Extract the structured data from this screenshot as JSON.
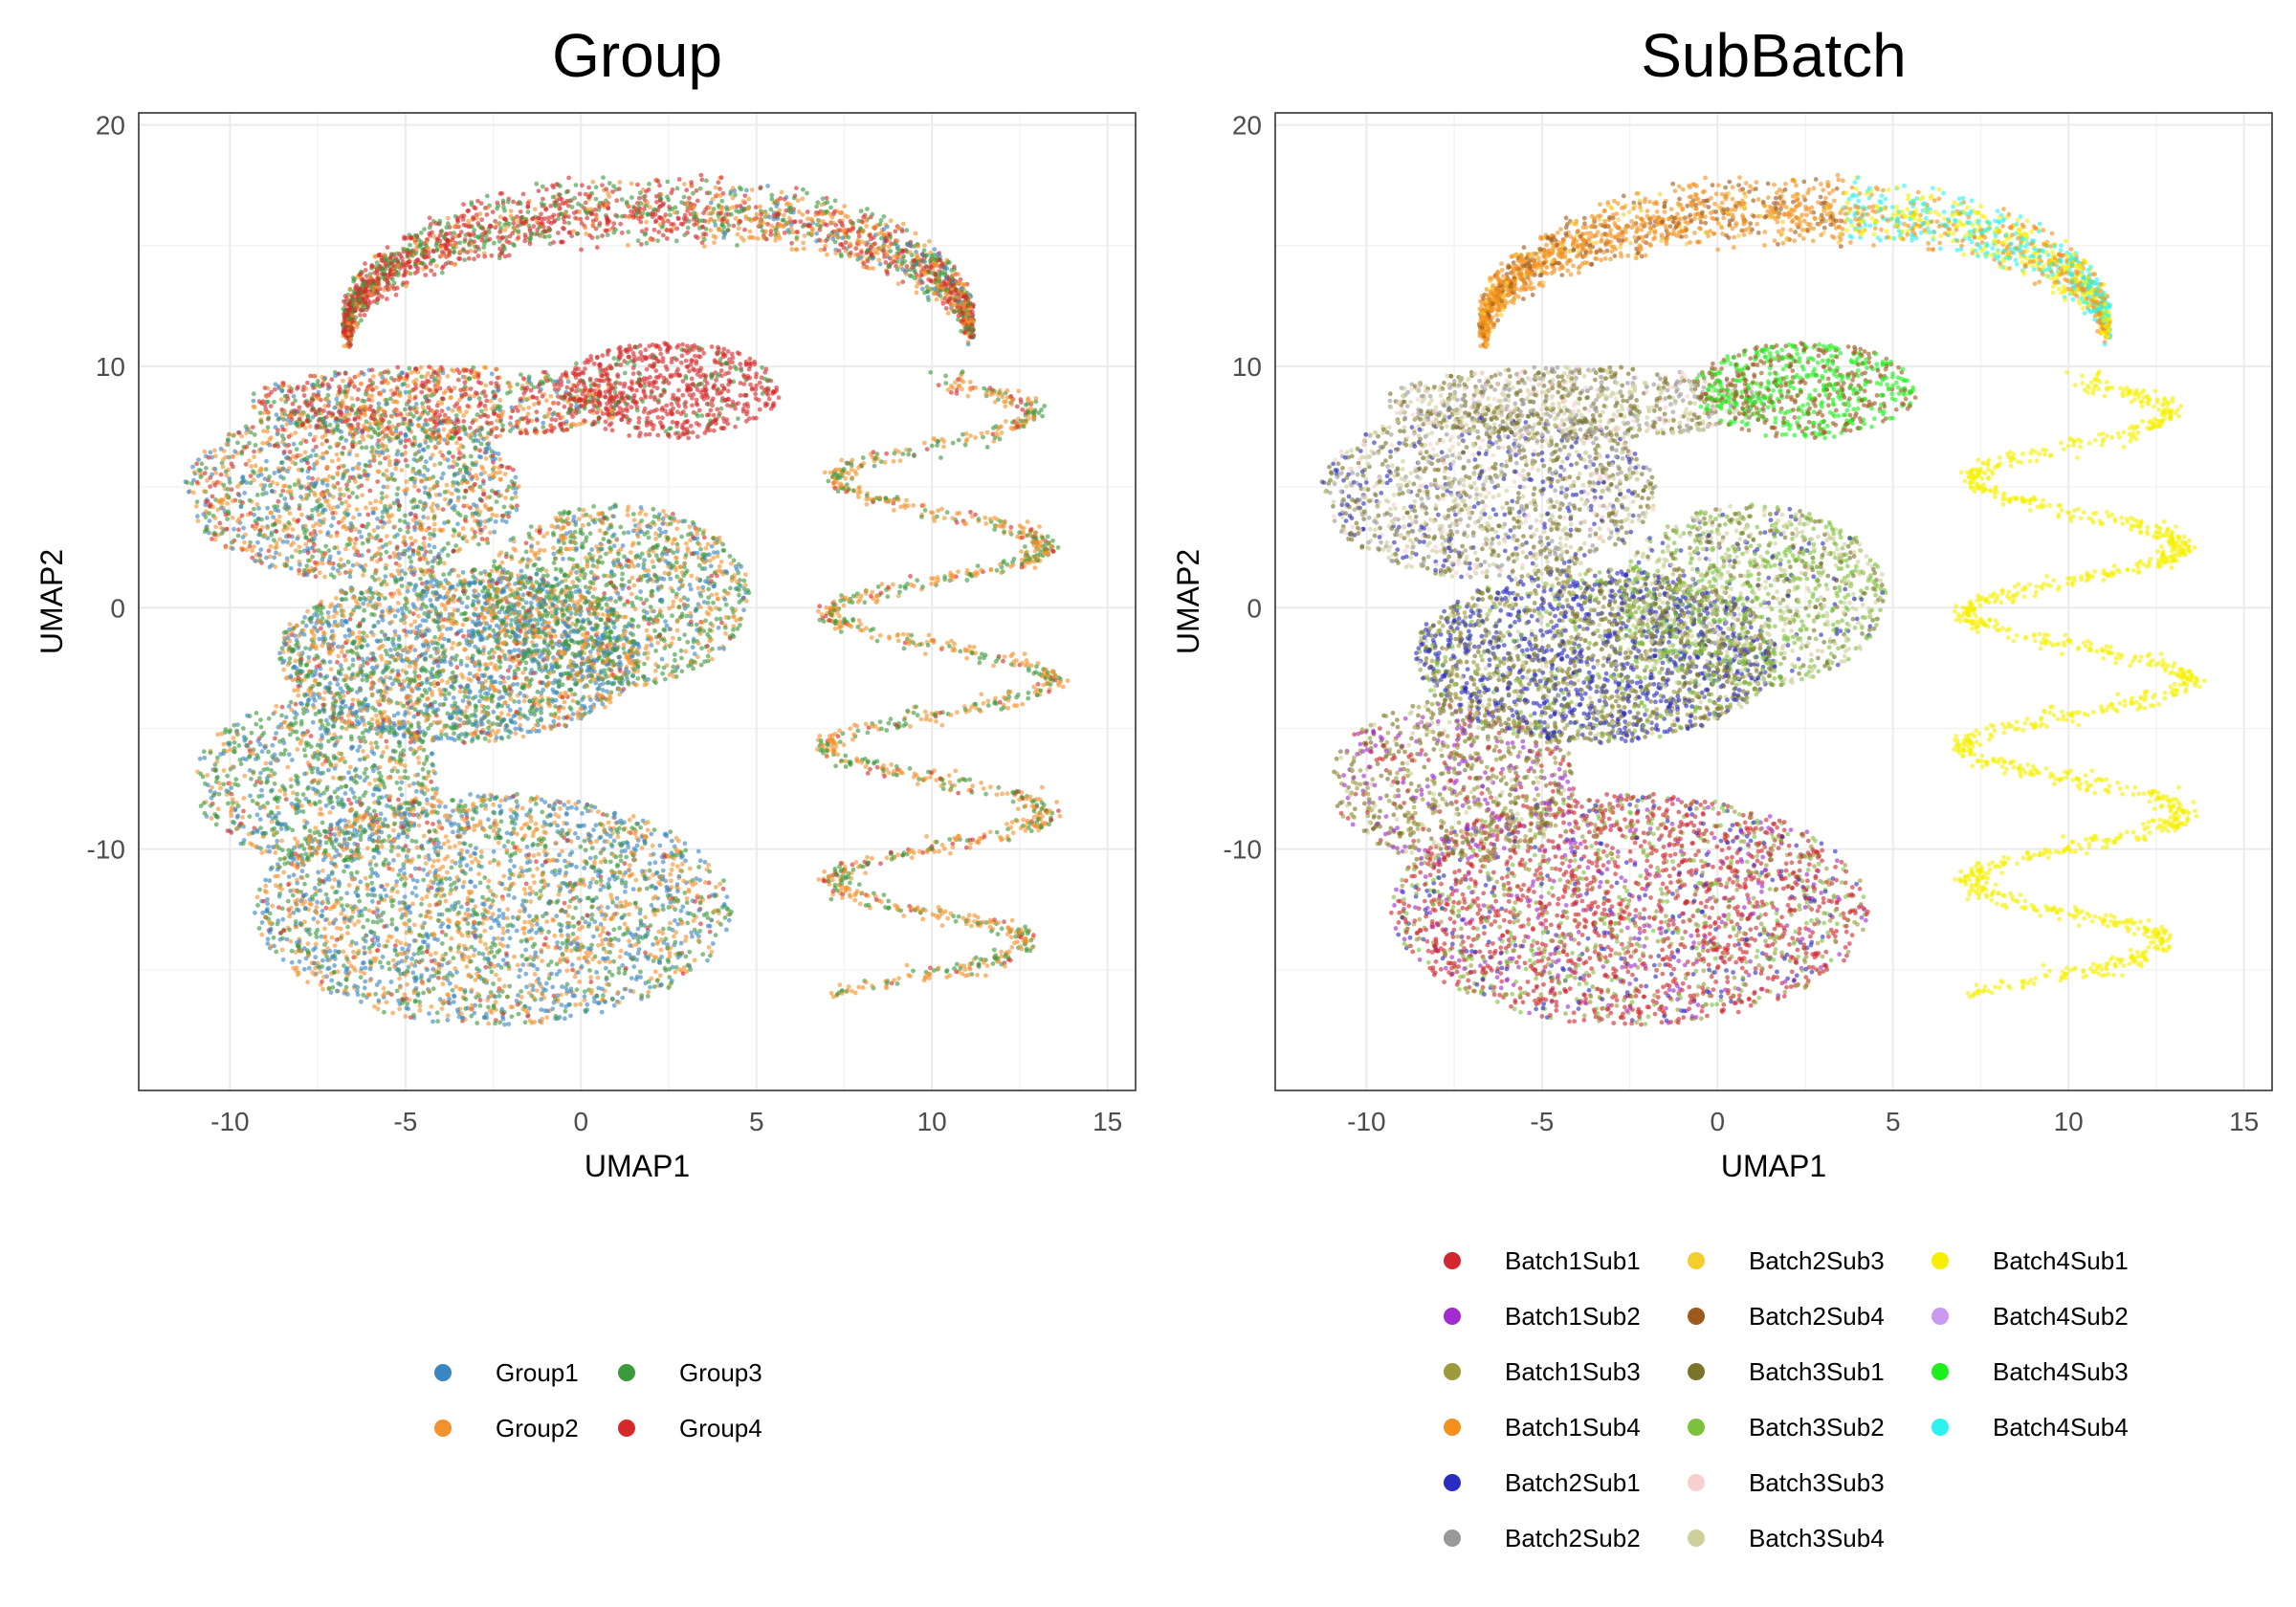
{
  "chart_data": [
    {
      "type": "scatter",
      "title": "Group",
      "xlabel": "UMAP1",
      "ylabel": "UMAP2",
      "xlim": [
        -12.6,
        15.8
      ],
      "ylim": [
        -20.0,
        20.5
      ],
      "x_ticks": [
        -10,
        -5,
        0,
        5,
        10,
        15
      ],
      "y_ticks": [
        -10,
        0,
        10,
        20
      ],
      "grid": true,
      "legend_position": "bottom",
      "series": [
        {
          "name": "Group1",
          "color": "#3a86c0"
        },
        {
          "name": "Group2",
          "color": "#f4912a"
        },
        {
          "name": "Group3",
          "color": "#3c9a3c"
        },
        {
          "name": "Group4",
          "color": "#d62a2a"
        }
      ]
    },
    {
      "type": "scatter",
      "title": "SubBatch",
      "xlabel": "UMAP1",
      "ylabel": "UMAP2",
      "xlim": [
        -12.6,
        15.8
      ],
      "ylim": [
        -20.0,
        20.5
      ],
      "x_ticks": [
        -10,
        -5,
        0,
        5,
        10,
        15
      ],
      "y_ticks": [
        -10,
        0,
        10,
        20
      ],
      "grid": true,
      "legend_position": "bottom",
      "series": [
        {
          "name": "Batch1Sub1",
          "color": "#d1272d"
        },
        {
          "name": "Batch1Sub2",
          "color": "#a22bd0"
        },
        {
          "name": "Batch1Sub3",
          "color": "#9c9a3c"
        },
        {
          "name": "Batch1Sub4",
          "color": "#f4911e"
        },
        {
          "name": "Batch2Sub1",
          "color": "#2b2dc0"
        },
        {
          "name": "Batch2Sub2",
          "color": "#999999"
        },
        {
          "name": "Batch2Sub3",
          "color": "#f4cd2e"
        },
        {
          "name": "Batch2Sub4",
          "color": "#9c5a1e"
        },
        {
          "name": "Batch3Sub1",
          "color": "#7a7428"
        },
        {
          "name": "Batch3Sub2",
          "color": "#7cc23c"
        },
        {
          "name": "Batch3Sub3",
          "color": "#f8cfcf"
        },
        {
          "name": "Batch3Sub4",
          "color": "#cfcf9c"
        },
        {
          "name": "Batch4Sub1",
          "color": "#f6f000"
        },
        {
          "name": "Batch4Sub2",
          "color": "#cc99f0"
        },
        {
          "name": "Batch4Sub3",
          "color": "#1ef01e"
        },
        {
          "name": "Batch4Sub4",
          "color": "#2ef2f0"
        }
      ]
    }
  ]
}
